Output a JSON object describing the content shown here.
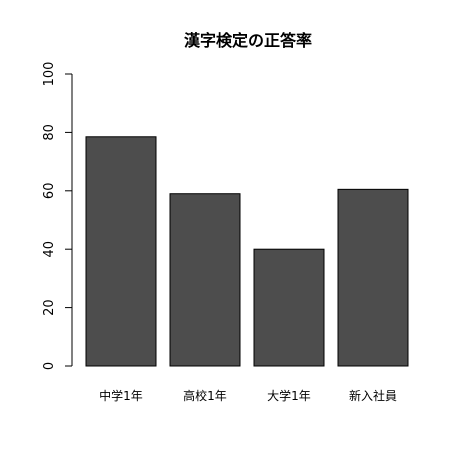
{
  "chart_data": {
    "type": "bar",
    "title": "漢字検定の正答率",
    "xlabel": "",
    "ylabel": "",
    "categories": [
      "中学1年",
      "高校1年",
      "大学1年",
      "新入社員"
    ],
    "category_labels": [
      "中学1年",
      "高校1年",
      "大学1年",
      "新入社員"
    ],
    "values": [
      78.5,
      59,
      40,
      60.5
    ],
    "ylim": [
      0,
      100
    ],
    "yticks": [
      0,
      20,
      40,
      60,
      80,
      100
    ],
    "ytick_labels": [
      "0",
      "20",
      "40",
      "60",
      "80",
      "100"
    ],
    "grid": false,
    "legend": "none",
    "bar_color": "#4d4d4d",
    "bar_border_color": "#000000"
  }
}
